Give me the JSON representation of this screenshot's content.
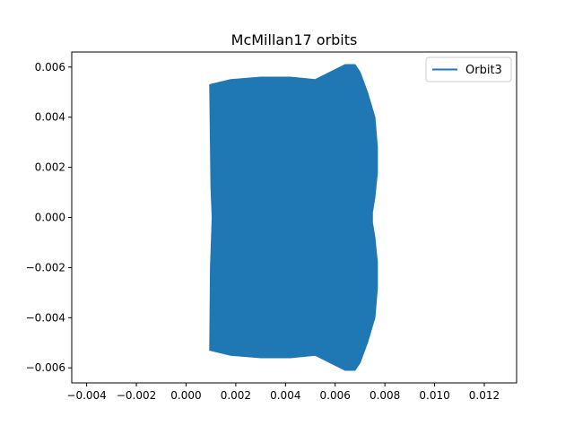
{
  "chart_data": {
    "type": "line",
    "title": "McMillan17 orbits",
    "xlabel": "",
    "ylabel": "",
    "xlim": [
      -0.0046,
      0.0133
    ],
    "ylim": [
      -0.0066,
      0.0066
    ],
    "xticks": [
      -0.004,
      -0.002,
      0.0,
      0.002,
      0.004,
      0.006,
      0.008,
      0.01,
      0.012
    ],
    "xtick_labels": [
      "−0.004",
      "−0.002",
      "0.000",
      "0.002",
      "0.004",
      "0.006",
      "0.008",
      "0.010",
      "0.012"
    ],
    "yticks": [
      -0.006,
      -0.004,
      -0.002,
      0.0,
      0.002,
      0.004,
      0.006
    ],
    "ytick_labels": [
      "−0.006",
      "−0.004",
      "−0.002",
      "0.000",
      "0.002",
      "0.004",
      "0.006"
    ],
    "grid": false,
    "legend_position": "upper right",
    "series": [
      {
        "name": "Orbit3",
        "color": "#1f77b4",
        "render": "filled-envelope",
        "outline": {
          "x": [
            0.00095,
            0.0018,
            0.003,
            0.0042,
            0.0052,
            0.0058,
            0.0064,
            0.0068,
            0.007,
            0.0073,
            0.0076,
            0.0077,
            0.0077,
            0.0076,
            0.0075,
            0.0075,
            0.0076,
            0.0077,
            0.0077,
            0.0076,
            0.0073,
            0.007,
            0.0068,
            0.0064,
            0.0058,
            0.0052,
            0.0042,
            0.003,
            0.0018,
            0.00095,
            0.00098,
            0.00105,
            0.001,
            0.00095
          ],
          "y": [
            0.0053,
            0.0055,
            0.0056,
            0.0056,
            0.0055,
            0.0058,
            0.0061,
            0.0061,
            0.0058,
            0.005,
            0.004,
            0.0028,
            0.0018,
            0.0008,
            0.0002,
            -0.0002,
            -0.0008,
            -0.0018,
            -0.0028,
            -0.004,
            -0.005,
            -0.0058,
            -0.0061,
            -0.0061,
            -0.0058,
            -0.0055,
            -0.0056,
            -0.0056,
            -0.0055,
            -0.0053,
            -0.002,
            0.0,
            0.0012,
            0.0053
          ]
        }
      }
    ]
  }
}
